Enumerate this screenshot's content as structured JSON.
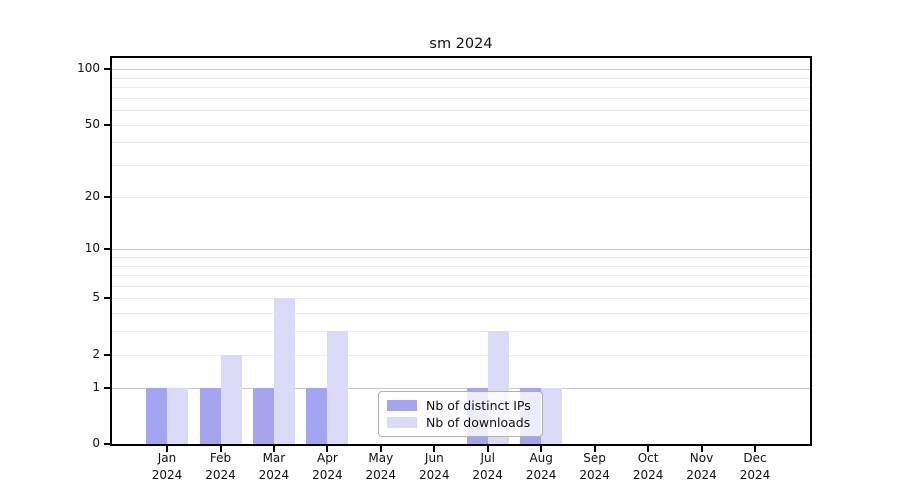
{
  "chart_data": {
    "type": "bar",
    "title": "sm 2024",
    "categories": [
      {
        "month": "Jan",
        "year": "2024"
      },
      {
        "month": "Feb",
        "year": "2024"
      },
      {
        "month": "Mar",
        "year": "2024"
      },
      {
        "month": "Apr",
        "year": "2024"
      },
      {
        "month": "May",
        "year": "2024"
      },
      {
        "month": "Jun",
        "year": "2024"
      },
      {
        "month": "Jul",
        "year": "2024"
      },
      {
        "month": "Aug",
        "year": "2024"
      },
      {
        "month": "Sep",
        "year": "2024"
      },
      {
        "month": "Oct",
        "year": "2024"
      },
      {
        "month": "Nov",
        "year": "2024"
      },
      {
        "month": "Dec",
        "year": "2024"
      }
    ],
    "series": [
      {
        "name": "Nb of distinct IPs",
        "color": "#a5a5ef",
        "values": [
          1,
          1,
          1,
          1,
          0,
          0,
          1,
          1,
          0,
          0,
          0,
          0
        ]
      },
      {
        "name": "Nb of downloads",
        "color": "#dbdbf8",
        "values": [
          1,
          2,
          5,
          3,
          0,
          0,
          3,
          1,
          0,
          0,
          0,
          0
        ]
      }
    ],
    "yscale": "log1p",
    "ylim": [
      0,
      115
    ],
    "yticks": [
      0,
      1,
      2,
      5,
      10,
      20,
      50,
      100
    ],
    "grid_major": [
      1,
      10,
      100
    ],
    "grid_minor": [
      2,
      3,
      4,
      5,
      6,
      7,
      8,
      9,
      20,
      30,
      40,
      50,
      60,
      70,
      80,
      90
    ],
    "legend_position": "inside-bottom-center",
    "grid": "horizontal"
  },
  "colors": {
    "grid_major": "#c8c8c8",
    "grid_minor": "#ededed",
    "spine": "#000000",
    "text": "#111111",
    "legend_border": "#b0b0b0"
  }
}
